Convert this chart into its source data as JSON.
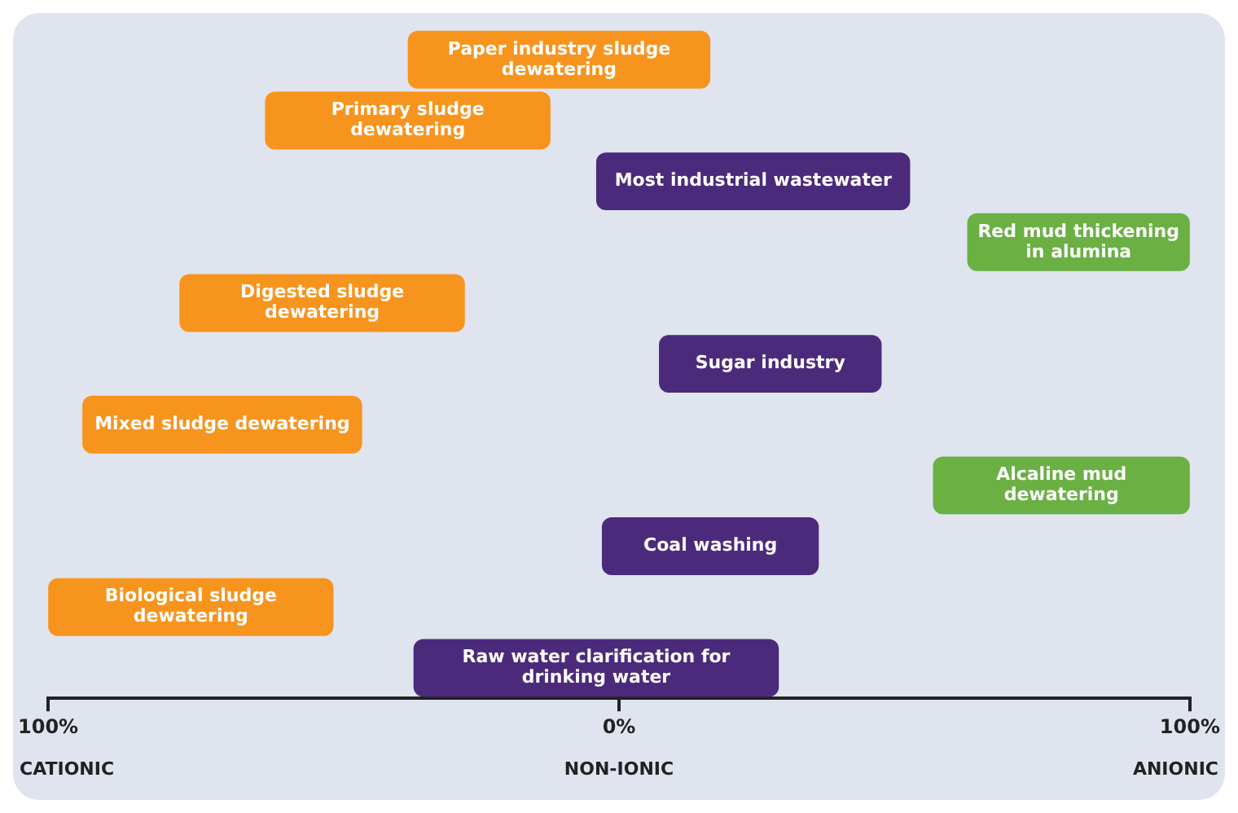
{
  "chart_data": {
    "type": "bar",
    "orientation": "horizontal",
    "tick_labels": "x",
    "categories": [
      "Paper industry sludge dewatering",
      "Primary sludge dewatering",
      "Most industrial wastewater",
      "Red mud thickening in alumina",
      "Digested sludge dewatering",
      "Sugar industry",
      "Mixed sludge dewatering",
      "Alcaline mud dewatering",
      "Coal washing",
      "Biological sludge dewatering",
      "Raw water clarification for drinking water"
    ],
    "base": [
      -37,
      -62,
      -4,
      61,
      -77,
      7,
      -94,
      55,
      -3,
      -100,
      -36
    ],
    "values": [
      53,
      50,
      55,
      39,
      50,
      39,
      49,
      45,
      38,
      50,
      64
    ],
    "colors": [
      "#f7941d",
      "#f7941d",
      "#4b2a7b",
      "#6ab043",
      "#f7941d",
      "#4b2a7b",
      "#f7941d",
      "#6ab043",
      "#4b2a7b",
      "#f7941d",
      "#4b2a7b"
    ],
    "xlim": [
      -100,
      100
    ],
    "xticks": [
      {
        "value": -100,
        "label": "100%"
      },
      {
        "value": 0,
        "label": "0%"
      },
      {
        "value": 100,
        "label": "100%"
      }
    ],
    "annotations": [
      "CATIONIC",
      "NON-IONIC",
      "ANIONIC"
    ]
  }
}
